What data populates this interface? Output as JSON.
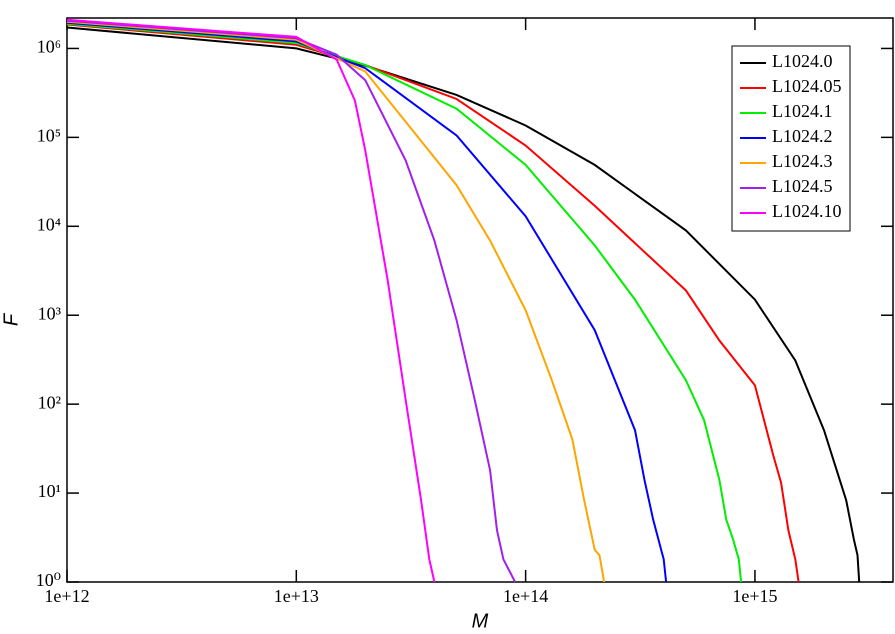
{
  "chart_data": {
    "type": "line",
    "x_label": "M",
    "y_label": "F",
    "xscale": "log",
    "yscale": "log",
    "xlim": [
      1000000000000.0,
      4000000000000000.0
    ],
    "ylim": [
      1,
      2200000.0
    ],
    "xticks": [
      {
        "value": 1000000000000.0,
        "label": "1e+12"
      },
      {
        "value": 10000000000000.0,
        "label": "1e+13"
      },
      {
        "value": 100000000000000.0,
        "label": "1e+14"
      },
      {
        "value": 1000000000000000.0,
        "label": "1e+15"
      }
    ],
    "yticks": [
      {
        "value": 1,
        "label": "10⁰"
      },
      {
        "value": 10,
        "label": "10¹"
      },
      {
        "value": 100,
        "label": "10²"
      },
      {
        "value": 1000,
        "label": "10³"
      },
      {
        "value": 10000,
        "label": "10⁴"
      },
      {
        "value": 100000,
        "label": "10⁵"
      },
      {
        "value": 1000000,
        "label": "10⁶"
      }
    ],
    "legend": "upper right",
    "series": [
      {
        "name": "L1024.0",
        "color": "#000000",
        "x": [
          1000000000000.0,
          10000000000000.0,
          20000000000000.0,
          50000000000000.0,
          100000000000000.0,
          200000000000000.0,
          500000000000000.0,
          1000000000000000.0,
          1500000000000000.0,
          2000000000000000.0,
          2500000000000000.0,
          2700000000000000.0,
          2800000000000000.0,
          2850000000000000.0
        ],
        "values": [
          1720000,
          1000000,
          640000,
          300000,
          136000,
          49000,
          9000,
          1500,
          310,
          51,
          8.3,
          3,
          2,
          1
        ]
      },
      {
        "name": "L1024.05",
        "color": "#ff0000",
        "x": [
          1000000000000.0,
          10000000000000.0,
          20000000000000.0,
          50000000000000.0,
          100000000000000.0,
          200000000000000.0,
          500000000000000.0,
          700000000000000.0,
          1000000000000000.0,
          1200000000000000.0,
          1300000000000000.0,
          1400000000000000.0,
          1500000000000000.0,
          1550000000000000.0
        ],
        "values": [
          1860000,
          1100000,
          650000,
          270000,
          81000,
          17000,
          1900,
          520,
          163,
          27,
          13,
          3.8,
          1.8,
          1
        ]
      },
      {
        "name": "L1024.1",
        "color": "#00ee00",
        "x": [
          1000000000000.0,
          10000000000000.0,
          20000000000000.0,
          50000000000000.0,
          100000000000000.0,
          200000000000000.0,
          300000000000000.0,
          500000000000000.0,
          600000000000000.0,
          700000000000000.0,
          750000000000000.0,
          800000000000000.0,
          850000000000000.0,
          870000000000000.0
        ],
        "values": [
          1900000,
          1150000,
          650000,
          210000,
          49000,
          6100,
          1500,
          186,
          66,
          14,
          5,
          3.1,
          1.8,
          1
        ]
      },
      {
        "name": "L1024.2",
        "color": "#0000ff",
        "x": [
          1000000000000.0,
          10000000000000.0,
          20000000000000.0,
          50000000000000.0,
          100000000000000.0,
          200000000000000.0,
          300000000000000.0,
          330000000000000.0,
          360000000000000.0,
          400000000000000.0,
          410000000000000.0
        ],
        "values": [
          1950000,
          1200000,
          600000,
          105000,
          13000,
          680,
          51,
          14,
          5,
          1.8,
          1
        ]
      },
      {
        "name": "L1024.3",
        "color": "#ffa500",
        "x": [
          1000000000000.0,
          10000000000000.0,
          20000000000000.0,
          50000000000000.0,
          70000000000000.0,
          100000000000000.0,
          130000000000000.0,
          160000000000000.0,
          180000000000000.0,
          200000000000000.0,
          210000000000000.0,
          220000000000000.0
        ],
        "values": [
          2000000,
          1250000,
          550000,
          29000,
          6900,
          1140,
          186,
          40,
          8.3,
          2.3,
          2,
          1
        ]
      },
      {
        "name": "L1024.5",
        "color": "#a020f0",
        "x": [
          1000000000000.0,
          10000000000000.0,
          15000000000000.0,
          20000000000000.0,
          30000000000000.0,
          40000000000000.0,
          50000000000000.0,
          60000000000000.0,
          70000000000000.0,
          75000000000000.0,
          80000000000000.0,
          90000000000000.0
        ],
        "values": [
          2050000,
          1300000,
          850000,
          440000,
          55000,
          6900,
          880,
          111,
          18,
          3.8,
          1.8,
          1
        ]
      },
      {
        "name": "L1024.10",
        "color": "#ff00ff",
        "x": [
          1000000000000.0,
          10000000000000.0,
          15000000000000.0,
          18000000000000.0,
          20000000000000.0,
          25000000000000.0,
          30000000000000.0,
          35000000000000.0,
          38000000000000.0,
          40000000000000.0
        ],
        "values": [
          2100000,
          1350000,
          750000,
          260000,
          71000,
          2500,
          111,
          8.3,
          1.8,
          1
        ]
      }
    ]
  }
}
